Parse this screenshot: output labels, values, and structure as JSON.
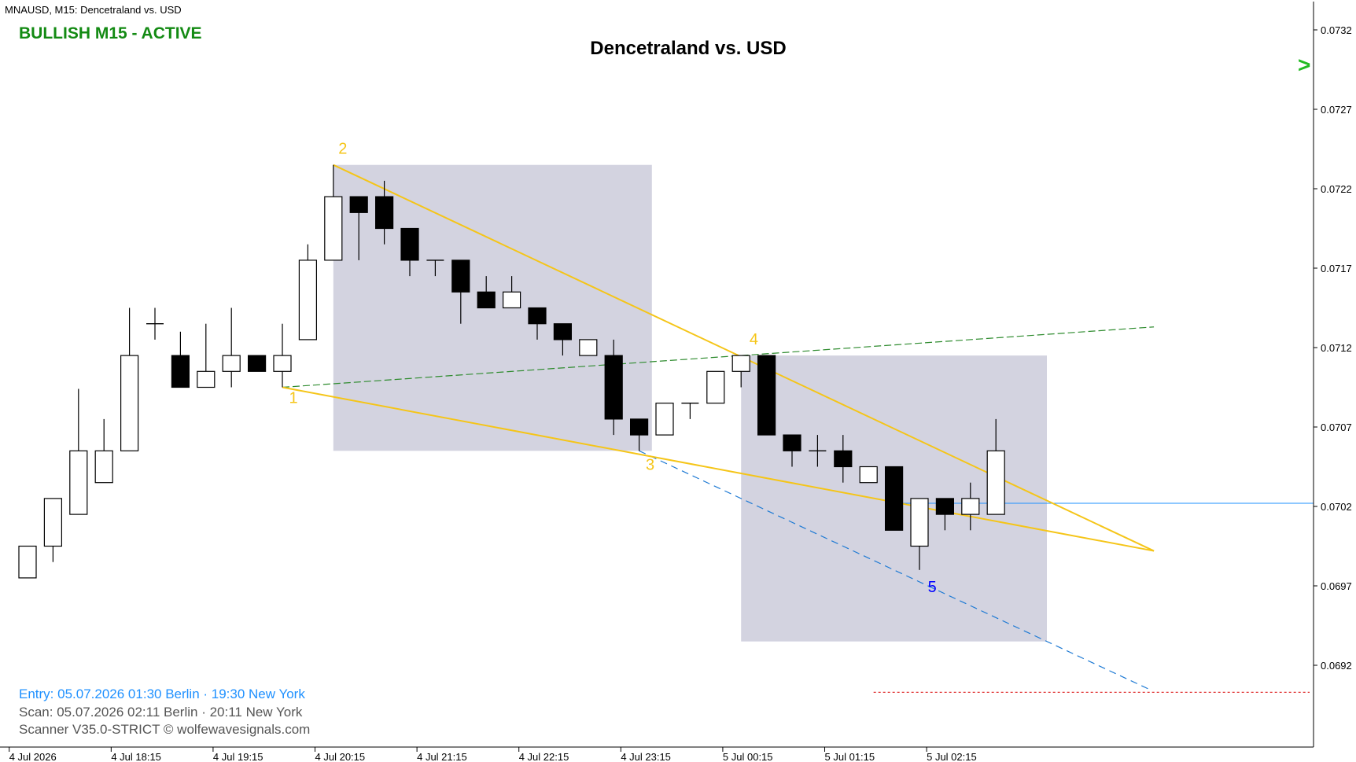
{
  "window": {
    "symbol_label": "MNAUSD, M15:  Dencetraland vs. USD"
  },
  "status": {
    "text": "BULLISH M15 - ACTIVE",
    "color": "#138a13"
  },
  "chart_data": {
    "type": "candlestick",
    "title": "Dencetraland vs. USD",
    "timeframe": "M15",
    "y_ticks": [
      "0.0732",
      "0.0727",
      "0.0722",
      "0.0717",
      "0.0712",
      "0.0707",
      "0.0702",
      "0.0697",
      "0.0692"
    ],
    "ylim": [
      0.0688,
      0.0734
    ],
    "x_ticks": [
      {
        "label": "4 Jul 2026",
        "index": 0.3
      },
      {
        "label": "4 Jul 18:15",
        "index": 4.3
      },
      {
        "label": "4 Jul 19:15",
        "index": 8.3
      },
      {
        "label": "4 Jul 20:15",
        "index": 12.3
      },
      {
        "label": "4 Jul 21:15",
        "index": 16.3
      },
      {
        "label": "4 Jul 22:15",
        "index": 20.3
      },
      {
        "label": "4 Jul 23:15",
        "index": 24.3
      },
      {
        "label": "5 Jul 00:15",
        "index": 28.3
      },
      {
        "label": "5 Jul 01:15",
        "index": 32.3
      },
      {
        "label": "5 Jul 02:15",
        "index": 36.3
      }
    ],
    "candles": [
      {
        "o": 0.06975,
        "h": 0.06995,
        "l": 0.06975,
        "c": 0.06995
      },
      {
        "o": 0.06995,
        "h": 0.07025,
        "l": 0.06985,
        "c": 0.07025
      },
      {
        "o": 0.07015,
        "h": 0.07094,
        "l": 0.07015,
        "c": 0.07055
      },
      {
        "o": 0.07035,
        "h": 0.07075,
        "l": 0.07035,
        "c": 0.07055
      },
      {
        "o": 0.07055,
        "h": 0.07145,
        "l": 0.07055,
        "c": 0.07115
      },
      {
        "o": 0.07135,
        "h": 0.07145,
        "l": 0.07125,
        "c": 0.07135
      },
      {
        "o": 0.07115,
        "h": 0.0713,
        "l": 0.07095,
        "c": 0.07095
      },
      {
        "o": 0.07095,
        "h": 0.07135,
        "l": 0.07095,
        "c": 0.07105
      },
      {
        "o": 0.07105,
        "h": 0.07145,
        "l": 0.07095,
        "c": 0.07115
      },
      {
        "o": 0.07115,
        "h": 0.07115,
        "l": 0.07105,
        "c": 0.07105
      },
      {
        "o": 0.07105,
        "h": 0.07135,
        "l": 0.07095,
        "c": 0.07115
      },
      {
        "o": 0.07125,
        "h": 0.07185,
        "l": 0.07125,
        "c": 0.07175
      },
      {
        "o": 0.07175,
        "h": 0.07235,
        "l": 0.07175,
        "c": 0.07215
      },
      {
        "o": 0.07215,
        "h": 0.07215,
        "l": 0.07175,
        "c": 0.07205
      },
      {
        "o": 0.07215,
        "h": 0.07225,
        "l": 0.07185,
        "c": 0.07195
      },
      {
        "o": 0.07195,
        "h": 0.07195,
        "l": 0.07165,
        "c": 0.07175
      },
      {
        "o": 0.07175,
        "h": 0.07175,
        "l": 0.07165,
        "c": 0.07175
      },
      {
        "o": 0.07175,
        "h": 0.07175,
        "l": 0.07135,
        "c": 0.07155
      },
      {
        "o": 0.07155,
        "h": 0.07165,
        "l": 0.07145,
        "c": 0.07145
      },
      {
        "o": 0.07145,
        "h": 0.07165,
        "l": 0.07145,
        "c": 0.07155
      },
      {
        "o": 0.07145,
        "h": 0.07145,
        "l": 0.07125,
        "c": 0.07135
      },
      {
        "o": 0.07135,
        "h": 0.07135,
        "l": 0.07115,
        "c": 0.07125
      },
      {
        "o": 0.07115,
        "h": 0.07125,
        "l": 0.07115,
        "c": 0.07125
      },
      {
        "o": 0.07115,
        "h": 0.07125,
        "l": 0.07065,
        "c": 0.07075
      },
      {
        "o": 0.07075,
        "h": 0.07075,
        "l": 0.07055,
        "c": 0.07065
      },
      {
        "o": 0.07065,
        "h": 0.07085,
        "l": 0.07065,
        "c": 0.07085
      },
      {
        "o": 0.07085,
        "h": 0.07085,
        "l": 0.07075,
        "c": 0.07085
      },
      {
        "o": 0.07085,
        "h": 0.07105,
        "l": 0.07085,
        "c": 0.07105
      },
      {
        "o": 0.07105,
        "h": 0.07115,
        "l": 0.07095,
        "c": 0.07115
      },
      {
        "o": 0.07115,
        "h": 0.07115,
        "l": 0.07065,
        "c": 0.07065
      },
      {
        "o": 0.07065,
        "h": 0.07065,
        "l": 0.07045,
        "c": 0.07055
      },
      {
        "o": 0.07055,
        "h": 0.07065,
        "l": 0.07045,
        "c": 0.07055
      },
      {
        "o": 0.07055,
        "h": 0.07065,
        "l": 0.07035,
        "c": 0.07045
      },
      {
        "o": 0.07035,
        "h": 0.07045,
        "l": 0.07035,
        "c": 0.07045
      },
      {
        "o": 0.07045,
        "h": 0.07045,
        "l": 0.07005,
        "c": 0.07005
      },
      {
        "o": 0.06995,
        "h": 0.07025,
        "l": 0.0698,
        "c": 0.07025
      },
      {
        "o": 0.07025,
        "h": 0.07025,
        "l": 0.07005,
        "c": 0.07015
      },
      {
        "o": 0.07015,
        "h": 0.07035,
        "l": 0.07005,
        "c": 0.07025
      },
      {
        "o": 0.07015,
        "h": 0.07075,
        "l": 0.07015,
        "c": 0.07055
      }
    ],
    "wave_points": [
      {
        "label": "1",
        "index": 10,
        "price": 0.07095,
        "color": "#f5c518"
      },
      {
        "label": "2",
        "index": 12,
        "price": 0.07235,
        "color": "#f5c518"
      },
      {
        "label": "3",
        "index": 24,
        "price": 0.07055,
        "color": "#f5c518"
      },
      {
        "label": "4",
        "index": 28.5,
        "price": 0.07116,
        "color": "#f5c518"
      },
      {
        "label": "5",
        "index": 35.5,
        "price": 0.06978,
        "color": "#0000ff"
      }
    ],
    "zones": [
      {
        "from_index": 12,
        "to_index": 24.5,
        "top": 0.07235,
        "bottom": 0.07055
      },
      {
        "from_index": 28,
        "to_index": 40,
        "top": 0.07115,
        "bottom": 0.06935
      }
    ],
    "lines": {
      "wedge_upper": [
        {
          "index": 12,
          "price": 0.07235
        },
        {
          "index": 44.2,
          "price": 0.06992
        }
      ],
      "wedge_lower": [
        {
          "index": 10,
          "price": 0.07095
        },
        {
          "index": 44.2,
          "price": 0.06992
        }
      ],
      "target_line_1_4": [
        {
          "index": 10,
          "price": 0.07095
        },
        {
          "index": 44.2,
          "price": 0.07133
        }
      ],
      "projection_3_5": [
        {
          "index": 24,
          "price": 0.07055
        },
        {
          "index": 44,
          "price": 0.06905
        }
      ],
      "current_price": 0.07022,
      "target_price": 0.06903
    },
    "colors": {
      "wedge": "#f5c518",
      "zone": "#d3d3e0",
      "target_line": "#2e8b2e",
      "projection": "#1e7ad4",
      "current_price": "#1e90ff",
      "target_price": "#e03030"
    }
  },
  "arrow_signal": {
    "glyph": ">",
    "color": "#22bb22"
  },
  "info": {
    "entry": "Entry: 05.07.2026  01:30 Berlin · 19:30 New York",
    "scan": "Scan:  05.07.2026  02:11 Berlin · 20:11 New York",
    "scanner": "Scanner V35.0-STRICT   © wolfewavesignals.com",
    "entry_color": "#1e90ff",
    "text_color": "#555555"
  }
}
